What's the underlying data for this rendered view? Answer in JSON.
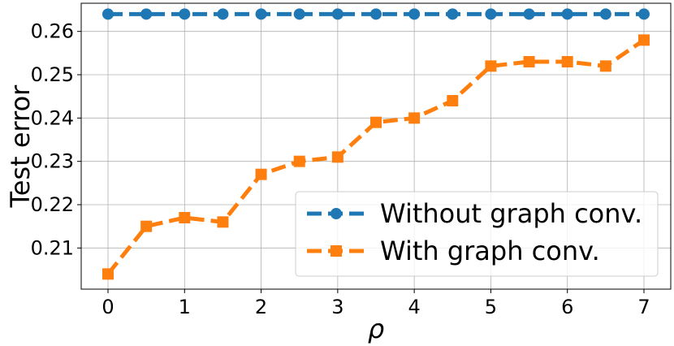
{
  "chart_data": {
    "type": "line",
    "title": "",
    "xlabel": "ρ",
    "ylabel": "Test error",
    "xlim": [
      -0.35,
      7.35
    ],
    "ylim": [
      0.2005,
      0.2665
    ],
    "xticks": [
      0,
      1,
      2,
      3,
      4,
      5,
      6,
      7
    ],
    "yticks": [
      0.21,
      0.22,
      0.23,
      0.24,
      0.25,
      0.26
    ],
    "grid": true,
    "legend_position": "lower-right",
    "x": [
      0,
      0.5,
      1,
      1.5,
      2,
      2.5,
      3,
      3.5,
      4,
      4.5,
      5,
      5.5,
      6,
      6.5,
      7
    ],
    "series": [
      {
        "name": "Without graph conv.",
        "color": "#1f77b4",
        "marker": "circle",
        "linestyle": "dashed",
        "values": [
          0.264,
          0.264,
          0.264,
          0.264,
          0.264,
          0.264,
          0.264,
          0.264,
          0.264,
          0.264,
          0.264,
          0.264,
          0.264,
          0.264,
          0.264
        ]
      },
      {
        "name": "With graph conv.",
        "color": "#ff7f0e",
        "marker": "square",
        "linestyle": "dashed",
        "values": [
          0.204,
          0.215,
          0.217,
          0.216,
          0.227,
          0.23,
          0.231,
          0.239,
          0.24,
          0.244,
          0.252,
          0.253,
          0.253,
          0.252,
          0.258
        ]
      }
    ]
  }
}
